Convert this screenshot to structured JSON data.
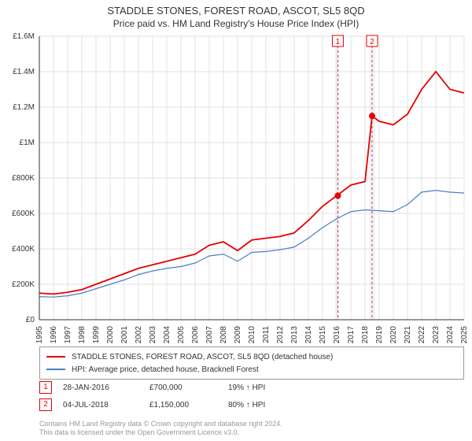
{
  "title": "STADDLE STONES, FOREST ROAD, ASCOT, SL5 8QD",
  "subtitle": "Price paid vs. HM Land Registry's House Price Index (HPI)",
  "chart": {
    "type": "line",
    "background_color": "#ffffff",
    "grid_color": "#e0e0e0",
    "axis_color": "#333333",
    "label_fontsize": 10,
    "title_fontsize": 13,
    "ylim": [
      0,
      1600000
    ],
    "ytick_step": 200000,
    "ytick_labels": [
      "£0",
      "£200K",
      "£400K",
      "£600K",
      "£800K",
      "£1M",
      "£1.2M",
      "£1.4M",
      "£1.6M"
    ],
    "xlim": [
      1995,
      2025
    ],
    "xtick_step": 1,
    "xtick_labels": [
      "1995",
      "1996",
      "1997",
      "1998",
      "1999",
      "2000",
      "2001",
      "2002",
      "2003",
      "2004",
      "2005",
      "2006",
      "2007",
      "2008",
      "2009",
      "2010",
      "2011",
      "2012",
      "2013",
      "2014",
      "2015",
      "2016",
      "2017",
      "2018",
      "2019",
      "2020",
      "2021",
      "2022",
      "2023",
      "2024",
      "2025"
    ],
    "series": [
      {
        "name": "price_paid",
        "label": "STADDLE STONES, FOREST ROAD, ASCOT, SL5 8QD (detached house)",
        "color": "#e60000",
        "line_width": 1.8,
        "data": [
          [
            1995,
            150000
          ],
          [
            1996,
            145000
          ],
          [
            1997,
            155000
          ],
          [
            1998,
            170000
          ],
          [
            1999,
            200000
          ],
          [
            2000,
            230000
          ],
          [
            2001,
            260000
          ],
          [
            2002,
            290000
          ],
          [
            2003,
            310000
          ],
          [
            2004,
            330000
          ],
          [
            2005,
            350000
          ],
          [
            2006,
            370000
          ],
          [
            2007,
            420000
          ],
          [
            2008,
            440000
          ],
          [
            2009,
            390000
          ],
          [
            2010,
            450000
          ],
          [
            2011,
            460000
          ],
          [
            2012,
            470000
          ],
          [
            2013,
            490000
          ],
          [
            2014,
            560000
          ],
          [
            2015,
            640000
          ],
          [
            2016,
            700000
          ],
          [
            2017,
            760000
          ],
          [
            2018,
            780000
          ],
          [
            2018.5,
            1150000
          ],
          [
            2019,
            1120000
          ],
          [
            2020,
            1100000
          ],
          [
            2021,
            1160000
          ],
          [
            2022,
            1300000
          ],
          [
            2023,
            1400000
          ],
          [
            2024,
            1300000
          ],
          [
            2025,
            1280000
          ]
        ]
      },
      {
        "name": "hpi",
        "label": "HPI: Average price, detached house, Bracknell Forest",
        "color": "#4a7fc4",
        "line_width": 1.2,
        "data": [
          [
            1995,
            130000
          ],
          [
            1996,
            128000
          ],
          [
            1997,
            135000
          ],
          [
            1998,
            150000
          ],
          [
            1999,
            175000
          ],
          [
            2000,
            200000
          ],
          [
            2001,
            225000
          ],
          [
            2002,
            255000
          ],
          [
            2003,
            275000
          ],
          [
            2004,
            290000
          ],
          [
            2005,
            300000
          ],
          [
            2006,
            320000
          ],
          [
            2007,
            360000
          ],
          [
            2008,
            370000
          ],
          [
            2009,
            330000
          ],
          [
            2010,
            380000
          ],
          [
            2011,
            385000
          ],
          [
            2012,
            395000
          ],
          [
            2013,
            410000
          ],
          [
            2014,
            460000
          ],
          [
            2015,
            520000
          ],
          [
            2016,
            570000
          ],
          [
            2017,
            610000
          ],
          [
            2018,
            620000
          ],
          [
            2019,
            615000
          ],
          [
            2020,
            610000
          ],
          [
            2021,
            650000
          ],
          [
            2022,
            720000
          ],
          [
            2023,
            730000
          ],
          [
            2024,
            720000
          ],
          [
            2025,
            715000
          ]
        ]
      }
    ],
    "highlight_bands": [
      {
        "x_start": 2015.9,
        "x_end": 2016.2,
        "color": "#eef2f8"
      },
      {
        "x_start": 2018.3,
        "x_end": 2018.7,
        "color": "#eef2f8"
      }
    ],
    "sale_markers": [
      {
        "index": "1",
        "x": 2016.08,
        "y": 700000,
        "color": "#e60000",
        "marker_radius": 4
      },
      {
        "index": "2",
        "x": 2018.5,
        "y": 1150000,
        "color": "#e60000",
        "marker_radius": 4
      }
    ],
    "flag_labels": [
      {
        "text": "1",
        "x": 2016.08,
        "y_top": 1600000,
        "border_color": "#e60000"
      },
      {
        "text": "2",
        "x": 2018.5,
        "y_top": 1600000,
        "border_color": "#e60000"
      }
    ]
  },
  "legend": {
    "items": [
      {
        "label": "STADDLE STONES, FOREST ROAD, ASCOT, SL5 8QD (detached house)",
        "color": "#e60000"
      },
      {
        "label": "HPI: Average price, detached house, Bracknell Forest",
        "color": "#4a7fc4"
      }
    ]
  },
  "sales_table": {
    "rows": [
      {
        "marker": "1",
        "date": "28-JAN-2016",
        "price": "£700,000",
        "vs_hpi": "19% ↑ HPI"
      },
      {
        "marker": "2",
        "date": "04-JUL-2018",
        "price": "£1,150,000",
        "vs_hpi": "80% ↑ HPI"
      }
    ]
  },
  "footer": {
    "line1": "Contains HM Land Registry data © Crown copyright and database right 2024.",
    "line2": "This data is licensed under the Open Government Licence v3.0."
  }
}
